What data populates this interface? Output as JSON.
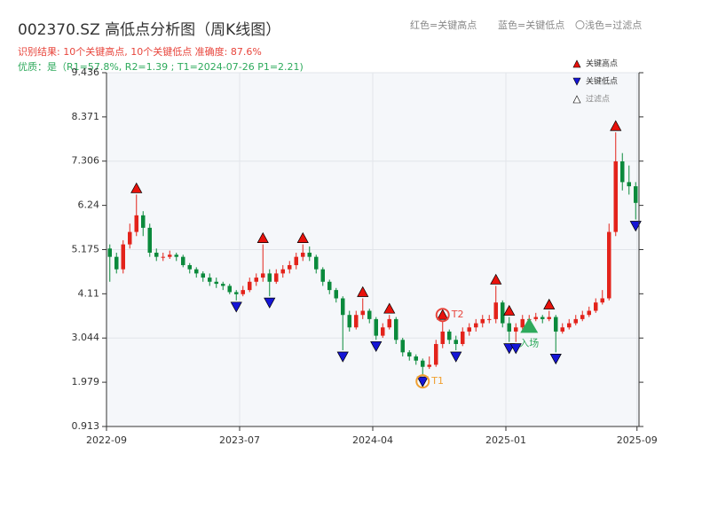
{
  "chart_data": {
    "type": "candlestick",
    "title": "002370.SZ 高低点分析图（周K线图）",
    "subtitle": "识别结果: 10个关键高点, 10个关键低点  准确度: 87.6%",
    "quality": "优质：是（R1=57.8%, R2=1.39 ; T1=2024-07-26 P1=2.21)",
    "notes": [
      "红色=关键高点",
      "蓝色=关键低点",
      "〇浅色=过滤点"
    ],
    "up_color": "#e3231b",
    "down_color": "#0b8a3c",
    "ohlc": [
      [
        5.2,
        5.3,
        4.4,
        5.0
      ],
      [
        5.0,
        5.1,
        4.6,
        4.7
      ],
      [
        4.7,
        5.4,
        4.6,
        5.3
      ],
      [
        5.3,
        5.8,
        5.2,
        5.6
      ],
      [
        5.6,
        6.5,
        5.5,
        6.0
      ],
      [
        6.0,
        6.1,
        5.5,
        5.7
      ],
      [
        5.7,
        5.8,
        5.0,
        5.1
      ],
      [
        5.1,
        5.2,
        4.9,
        5.0
      ],
      [
        5.0,
        5.1,
        4.9,
        5.0
      ],
      [
        5.0,
        5.15,
        4.95,
        5.05
      ],
      [
        5.05,
        5.1,
        4.9,
        5.0
      ],
      [
        5.0,
        5.05,
        4.75,
        4.8
      ],
      [
        4.8,
        4.85,
        4.6,
        4.7
      ],
      [
        4.7,
        4.75,
        4.5,
        4.6
      ],
      [
        4.6,
        4.65,
        4.4,
        4.5
      ],
      [
        4.5,
        4.6,
        4.3,
        4.4
      ],
      [
        4.4,
        4.5,
        4.25,
        4.35
      ],
      [
        4.35,
        4.4,
        4.2,
        4.3
      ],
      [
        4.3,
        4.35,
        4.1,
        4.15
      ],
      [
        4.15,
        4.2,
        3.95,
        4.1
      ],
      [
        4.1,
        4.3,
        4.05,
        4.2
      ],
      [
        4.2,
        4.5,
        4.15,
        4.4
      ],
      [
        4.4,
        4.6,
        4.3,
        4.5
      ],
      [
        4.5,
        5.3,
        4.4,
        4.6
      ],
      [
        4.6,
        4.7,
        4.05,
        4.4
      ],
      [
        4.4,
        4.7,
        4.35,
        4.6
      ],
      [
        4.6,
        4.8,
        4.5,
        4.7
      ],
      [
        4.7,
        4.9,
        4.6,
        4.8
      ],
      [
        4.8,
        5.1,
        4.7,
        5.0
      ],
      [
        5.0,
        5.3,
        4.9,
        5.1
      ],
      [
        5.1,
        5.25,
        4.9,
        5.0
      ],
      [
        5.0,
        5.05,
        4.6,
        4.7
      ],
      [
        4.7,
        4.75,
        4.3,
        4.4
      ],
      [
        4.4,
        4.45,
        4.1,
        4.2
      ],
      [
        4.2,
        4.25,
        3.9,
        4.0
      ],
      [
        4.0,
        4.05,
        2.75,
        3.6
      ],
      [
        3.6,
        3.7,
        3.2,
        3.3
      ],
      [
        3.3,
        3.7,
        3.25,
        3.6
      ],
      [
        3.6,
        4.0,
        3.5,
        3.7
      ],
      [
        3.7,
        3.75,
        3.4,
        3.5
      ],
      [
        3.5,
        3.55,
        3.0,
        3.1
      ],
      [
        3.1,
        3.4,
        3.05,
        3.3
      ],
      [
        3.3,
        3.6,
        3.25,
        3.5
      ],
      [
        3.5,
        3.55,
        2.9,
        3.0
      ],
      [
        3.0,
        3.05,
        2.6,
        2.7
      ],
      [
        2.7,
        2.75,
        2.5,
        2.6
      ],
      [
        2.6,
        2.65,
        2.4,
        2.5
      ],
      [
        2.5,
        2.55,
        2.15,
        2.35
      ],
      [
        2.35,
        2.6,
        2.3,
        2.4
      ],
      [
        2.4,
        3.0,
        2.35,
        2.9
      ],
      [
        2.9,
        3.45,
        2.8,
        3.2
      ],
      [
        3.2,
        3.25,
        2.9,
        3.0
      ],
      [
        3.0,
        3.1,
        2.75,
        2.9
      ],
      [
        2.9,
        3.3,
        2.85,
        3.2
      ],
      [
        3.2,
        3.4,
        3.1,
        3.3
      ],
      [
        3.3,
        3.5,
        3.2,
        3.4
      ],
      [
        3.4,
        3.6,
        3.3,
        3.5
      ],
      [
        3.5,
        3.6,
        3.4,
        3.5
      ],
      [
        3.5,
        4.3,
        3.4,
        3.9
      ],
      [
        3.9,
        3.95,
        3.3,
        3.4
      ],
      [
        3.4,
        3.55,
        2.95,
        3.2
      ],
      [
        3.2,
        3.4,
        2.95,
        3.3
      ],
      [
        3.3,
        3.6,
        3.25,
        3.5
      ],
      [
        3.5,
        3.6,
        3.4,
        3.5
      ],
      [
        3.5,
        3.65,
        3.45,
        3.55
      ],
      [
        3.55,
        3.6,
        3.4,
        3.5
      ],
      [
        3.5,
        3.7,
        3.45,
        3.55
      ],
      [
        3.55,
        3.6,
        2.7,
        3.2
      ],
      [
        3.2,
        3.4,
        3.15,
        3.3
      ],
      [
        3.3,
        3.5,
        3.25,
        3.4
      ],
      [
        3.4,
        3.6,
        3.35,
        3.5
      ],
      [
        3.5,
        3.7,
        3.45,
        3.6
      ],
      [
        3.6,
        3.8,
        3.55,
        3.7
      ],
      [
        3.7,
        4.0,
        3.65,
        3.9
      ],
      [
        3.9,
        4.2,
        3.85,
        4.0
      ],
      [
        4.0,
        5.8,
        3.95,
        5.6
      ],
      [
        5.6,
        8.0,
        5.5,
        7.3
      ],
      [
        7.3,
        7.5,
        6.6,
        6.8
      ],
      [
        6.8,
        7.2,
        6.5,
        6.7
      ],
      [
        6.7,
        6.8,
        5.9,
        6.3
      ]
    ],
    "key_highs": {
      "name": "关键高点",
      "color": "#e8120c",
      "points": [
        [
          4,
          6.5
        ],
        [
          23,
          5.3
        ],
        [
          29,
          5.3
        ],
        [
          38,
          4.0
        ],
        [
          42,
          3.6
        ],
        [
          50,
          3.45
        ],
        [
          58,
          4.3
        ],
        [
          60,
          3.55
        ],
        [
          66,
          3.7
        ],
        [
          76,
          8.0
        ]
      ]
    },
    "key_lows": {
      "name": "关键低点",
      "color": "#1515d6",
      "points": [
        [
          19,
          3.95
        ],
        [
          24,
          4.05
        ],
        [
          35,
          2.75
        ],
        [
          40,
          3.0
        ],
        [
          47,
          2.15
        ],
        [
          52,
          2.75
        ],
        [
          60,
          2.95
        ],
        [
          61,
          2.95
        ],
        [
          67,
          2.7
        ],
        [
          79,
          5.9
        ]
      ]
    },
    "filtered_label": "过滤点",
    "annotations": [
      {
        "label": "T1",
        "x": 47,
        "value": 2.15,
        "color": "#f0a030"
      },
      {
        "label": "T2",
        "x": 50,
        "value": 3.45,
        "color": "#e8453c"
      },
      {
        "label": "入场",
        "x": 63,
        "value": 3.34,
        "color": "#2eaa5c"
      }
    ],
    "xlim": [
      0,
      80
    ],
    "xticks": [
      {
        "value": 0,
        "label": "2022-09"
      },
      {
        "value": 20,
        "label": "2023-07"
      },
      {
        "value": 40,
        "label": "2024-04"
      },
      {
        "value": 60,
        "label": "2025-01"
      },
      {
        "value": 79.7,
        "label": "2025-09"
      }
    ],
    "ylim": [
      0.913,
      9.436
    ],
    "yticks": [
      0.913,
      1.979,
      3.044,
      4.11,
      5.175,
      6.24,
      7.306,
      8.371,
      9.436
    ],
    "grid": true
  }
}
